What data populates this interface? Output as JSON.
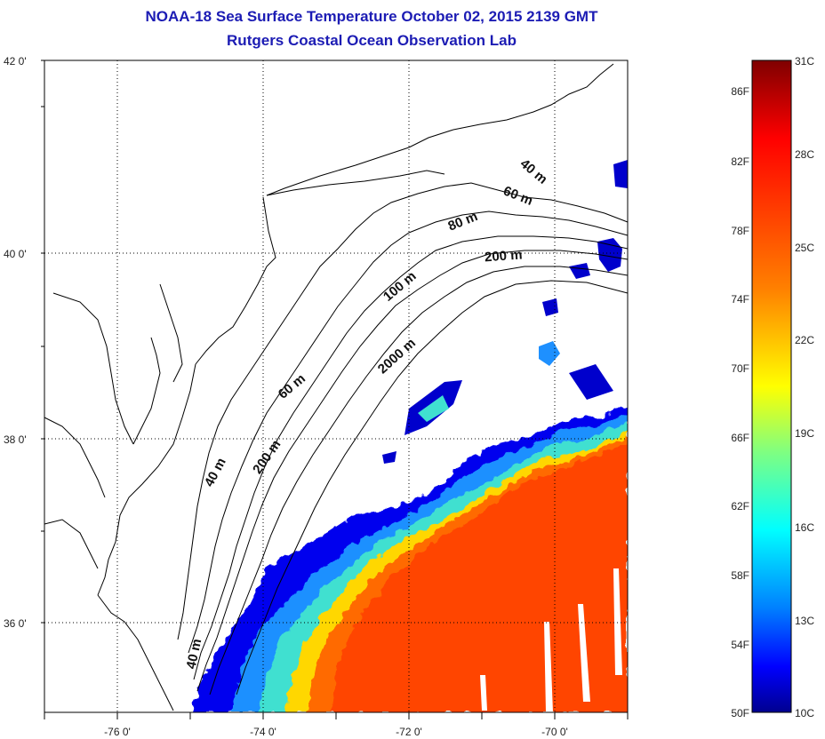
{
  "header": {
    "title": "NOAA-18 Sea Surface Temperature October 02, 2015 2139 GMT",
    "subtitle": "Rutgers Coastal Ocean Observation Lab"
  },
  "map": {
    "lon_labels": [
      "-76 0'",
      "-74 0'",
      "-72 0'",
      "-70 0'"
    ],
    "lat_labels": [
      "42 0'",
      "40 0'",
      "38 0'",
      "36 0'"
    ],
    "gridlines": "dotted",
    "isobath_labels": [
      "40 m",
      "60 m",
      "80 m",
      "200 m",
      "100 m",
      "2000 m",
      "60 m",
      "200 m",
      "40 m",
      "40 m"
    ]
  },
  "colorbar": {
    "range_celsius": [
      10,
      31
    ],
    "left_labels": [
      "86F",
      "82F",
      "78F",
      "74F",
      "70F",
      "66F",
      "62F",
      "58F",
      "54F",
      "50F"
    ],
    "right_labels": [
      "31C",
      "28C",
      "25C",
      "22C",
      "19C",
      "16C",
      "13C",
      "10C"
    ],
    "colors": [
      "#7f0000",
      "#ff0000",
      "#ff8000",
      "#ffff00",
      "#80ff80",
      "#00ffff",
      "#0080ff",
      "#0000ff",
      "#00008f"
    ]
  }
}
